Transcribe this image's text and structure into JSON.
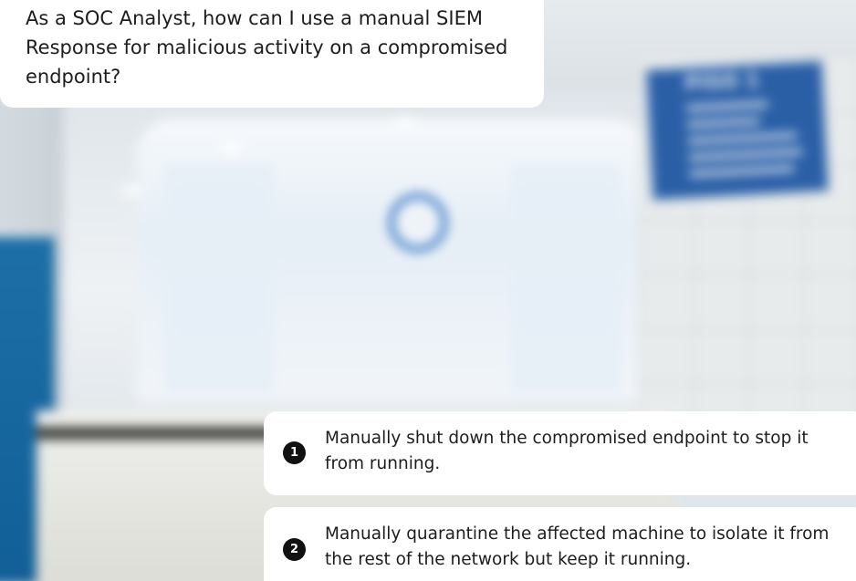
{
  "question": {
    "text": "As a SOC Analyst, how can I use a manual SIEM Response for malicious activity on a compromised endpoint?"
  },
  "options": [
    {
      "number": "1",
      "text": "Manually shut down the compromised endpoint to stop it from running."
    },
    {
      "number": "2",
      "text": "Manually quarantine the affected machine to isolate it from the rest of the network but keep it running."
    }
  ],
  "background": {
    "sign_text": "PISO 1"
  }
}
